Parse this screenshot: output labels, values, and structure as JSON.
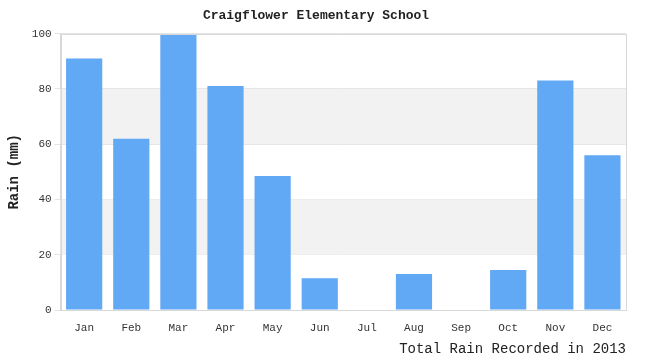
{
  "chart_data": {
    "type": "bar",
    "title": "Craigflower Elementary School",
    "x_label": "Total Rain Recorded in 2013",
    "y_label": "Rain (mm)",
    "categories": [
      "Jan",
      "Feb",
      "Mar",
      "Apr",
      "May",
      "Jun",
      "Jul",
      "Aug",
      "Sep",
      "Oct",
      "Nov",
      "Dec"
    ],
    "values": [
      91,
      62,
      99.5,
      81,
      48.5,
      11.5,
      0,
      13,
      0,
      14.5,
      83,
      56
    ],
    "color": "#61a8f5",
    "ylim": [
      0,
      100
    ],
    "yticks": [
      0,
      20,
      40,
      60,
      80,
      100
    ],
    "grid": true
  }
}
